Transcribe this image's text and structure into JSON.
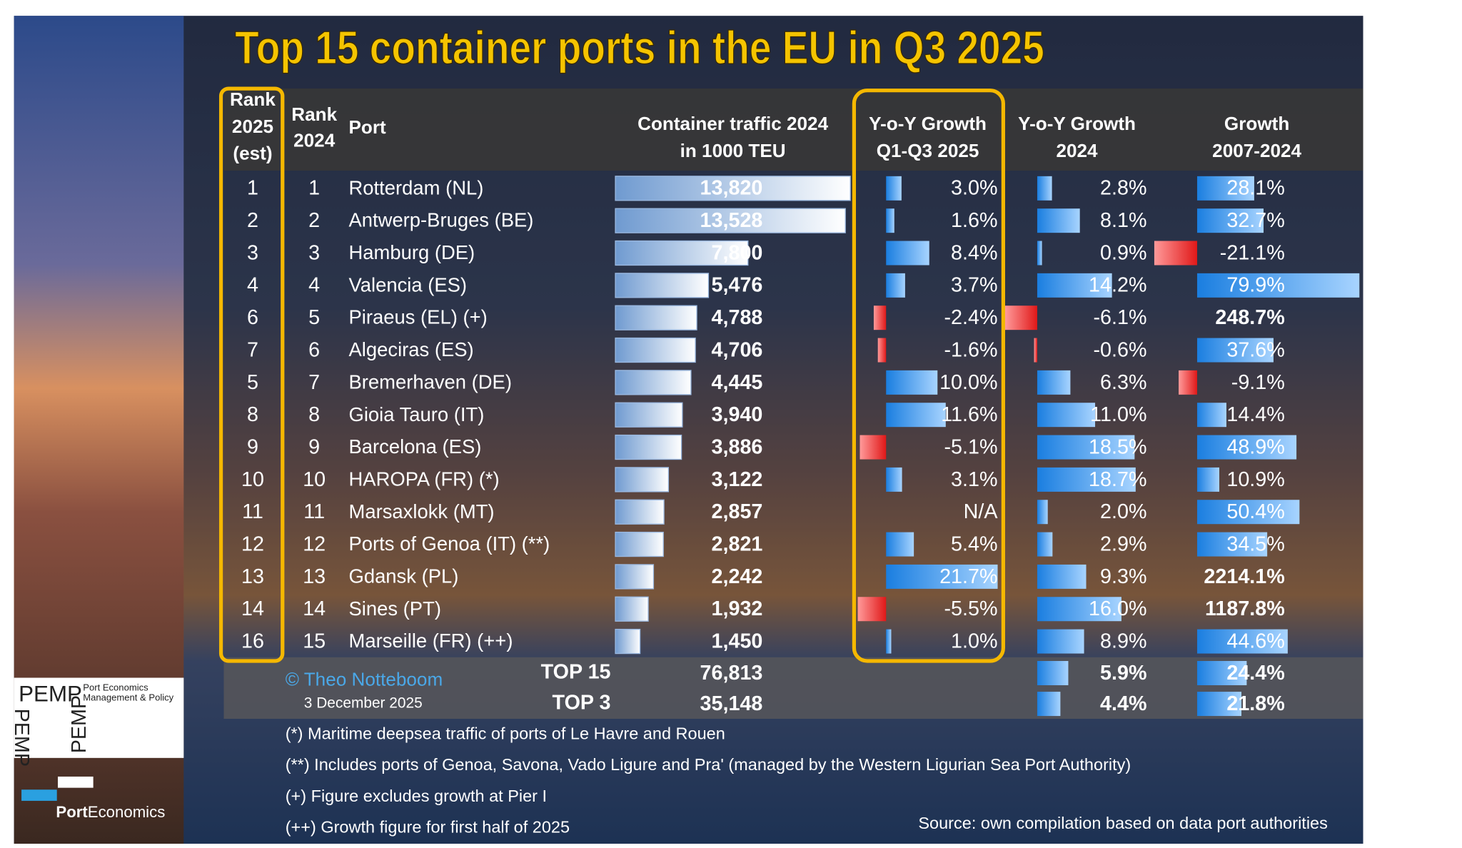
{
  "title": "Top 15 container ports in the EU in Q3 2025",
  "header": {
    "rank_2025": [
      "Rank",
      "2025",
      "(est)"
    ],
    "rank_2024": [
      "Rank",
      "2024"
    ],
    "port": "Port",
    "traffic": [
      "Container traffic 2024",
      "in 1000 TEU"
    ],
    "yoy_2025": [
      "Y-o-Y Growth",
      "Q1-Q3 2025"
    ],
    "yoy_2024": [
      "Y-o-Y Growth",
      "2024"
    ],
    "growth_2007_2024": [
      "Growth",
      "2007-2024"
    ]
  },
  "scales": {
    "traffic": [
      0,
      13820
    ],
    "yoy_2025": [
      -5.5,
      21.7
    ],
    "yoy_2024": [
      -6.1,
      18.7
    ],
    "growth_2007_2024": [
      -21.1,
      79.9
    ]
  },
  "table": {
    "rows": [
      {
        "rank_2025": 1,
        "rank_2024": 1,
        "port": "Rotterdam (NL)",
        "traffic": {
          "value": 13820,
          "label": "13,820"
        },
        "yoy_2025": {
          "value": 3.0,
          "label": "3.0%"
        },
        "yoy_2024": {
          "value": 2.8,
          "label": "2.8%"
        },
        "growth_2007_2024": {
          "value": 28.1,
          "label": "28.1%"
        }
      },
      {
        "rank_2025": 2,
        "rank_2024": 2,
        "port": "Antwerp-Bruges (BE)",
        "traffic": {
          "value": 13528,
          "label": "13,528"
        },
        "yoy_2025": {
          "value": 1.6,
          "label": "1.6%"
        },
        "yoy_2024": {
          "value": 8.1,
          "label": "8.1%"
        },
        "growth_2007_2024": {
          "value": 32.7,
          "label": "32.7%"
        }
      },
      {
        "rank_2025": 3,
        "rank_2024": 3,
        "port": "Hamburg (DE)",
        "traffic": {
          "value": 7800,
          "label": "7,800"
        },
        "yoy_2025": {
          "value": 8.4,
          "label": "8.4%"
        },
        "yoy_2024": {
          "value": 0.9,
          "label": "0.9%"
        },
        "growth_2007_2024": {
          "value": -21.1,
          "label": "-21.1%"
        }
      },
      {
        "rank_2025": 4,
        "rank_2024": 4,
        "port": "Valencia (ES)",
        "traffic": {
          "value": 5476,
          "label": "5,476"
        },
        "yoy_2025": {
          "value": 3.7,
          "label": "3.7%"
        },
        "yoy_2024": {
          "value": 14.2,
          "label": "14.2%"
        },
        "growth_2007_2024": {
          "value": 79.9,
          "label": "79.9%"
        }
      },
      {
        "rank_2025": 6,
        "rank_2024": 5,
        "port": "Piraeus (EL) (+)",
        "traffic": {
          "value": 4788,
          "label": "4,788"
        },
        "yoy_2025": {
          "value": -2.4,
          "label": "-2.4%"
        },
        "yoy_2024": {
          "value": -6.1,
          "label": "-6.1%"
        },
        "growth_2007_2024": {
          "value": 248.7,
          "label": "248.7%"
        }
      },
      {
        "rank_2025": 7,
        "rank_2024": 6,
        "port": "Algeciras (ES)",
        "traffic": {
          "value": 4706,
          "label": "4,706"
        },
        "yoy_2025": {
          "value": -1.6,
          "label": "-1.6%"
        },
        "yoy_2024": {
          "value": -0.6,
          "label": "-0.6%"
        },
        "growth_2007_2024": {
          "value": 37.6,
          "label": "37.6%"
        }
      },
      {
        "rank_2025": 5,
        "rank_2024": 7,
        "port": "Bremerhaven (DE)",
        "traffic": {
          "value": 4445,
          "label": "4,445"
        },
        "yoy_2025": {
          "value": 10.0,
          "label": "10.0%"
        },
        "yoy_2024": {
          "value": 6.3,
          "label": "6.3%"
        },
        "growth_2007_2024": {
          "value": -9.1,
          "label": "-9.1%"
        }
      },
      {
        "rank_2025": 8,
        "rank_2024": 8,
        "port": "Gioia Tauro (IT)",
        "traffic": {
          "value": 3940,
          "label": "3,940"
        },
        "yoy_2025": {
          "value": 11.6,
          "label": "11.6%"
        },
        "yoy_2024": {
          "value": 11.0,
          "label": "11.0%"
        },
        "growth_2007_2024": {
          "value": 14.4,
          "label": "14.4%"
        }
      },
      {
        "rank_2025": 9,
        "rank_2024": 9,
        "port": "Barcelona (ES)",
        "traffic": {
          "value": 3886,
          "label": "3,886"
        },
        "yoy_2025": {
          "value": -5.1,
          "label": "-5.1%"
        },
        "yoy_2024": {
          "value": 18.5,
          "label": "18.5%"
        },
        "growth_2007_2024": {
          "value": 48.9,
          "label": "48.9%"
        }
      },
      {
        "rank_2025": 10,
        "rank_2024": 10,
        "port": "HAROPA (FR) (*)",
        "traffic": {
          "value": 3122,
          "label": "3,122"
        },
        "yoy_2025": {
          "value": 3.1,
          "label": "3.1%"
        },
        "yoy_2024": {
          "value": 18.7,
          "label": "18.7%"
        },
        "growth_2007_2024": {
          "value": 10.9,
          "label": "10.9%"
        }
      },
      {
        "rank_2025": 11,
        "rank_2024": 11,
        "port": "Marsaxlokk (MT)",
        "traffic": {
          "value": 2857,
          "label": "2,857"
        },
        "yoy_2025": {
          "value": null,
          "label": "N/A"
        },
        "yoy_2024": {
          "value": 2.0,
          "label": "2.0%"
        },
        "growth_2007_2024": {
          "value": 50.4,
          "label": "50.4%"
        }
      },
      {
        "rank_2025": 12,
        "rank_2024": 12,
        "port": "Ports of Genoa (IT) (**)",
        "traffic": {
          "value": 2821,
          "label": "2,821"
        },
        "yoy_2025": {
          "value": 5.4,
          "label": "5.4%"
        },
        "yoy_2024": {
          "value": 2.9,
          "label": "2.9%"
        },
        "growth_2007_2024": {
          "value": 34.5,
          "label": "34.5%"
        }
      },
      {
        "rank_2025": 13,
        "rank_2024": 13,
        "port": "Gdansk (PL)",
        "traffic": {
          "value": 2242,
          "label": "2,242"
        },
        "yoy_2025": {
          "value": 21.7,
          "label": "21.7%"
        },
        "yoy_2024": {
          "value": 9.3,
          "label": "9.3%"
        },
        "growth_2007_2024": {
          "value": 2214.1,
          "label": "2214.1%"
        }
      },
      {
        "rank_2025": 14,
        "rank_2024": 14,
        "port": "Sines (PT)",
        "traffic": {
          "value": 1932,
          "label": "1,932"
        },
        "yoy_2025": {
          "value": -5.5,
          "label": "-5.5%"
        },
        "yoy_2024": {
          "value": 16.0,
          "label": "16.0%"
        },
        "growth_2007_2024": {
          "value": 1187.8,
          "label": "1187.8%"
        }
      },
      {
        "rank_2025": 16,
        "rank_2024": 15,
        "port": "Marseille (FR) (++)",
        "traffic": {
          "value": 1450,
          "label": "1,450"
        },
        "yoy_2025": {
          "value": 1.0,
          "label": "1.0%"
        },
        "yoy_2024": {
          "value": 8.9,
          "label": "8.9%"
        },
        "growth_2007_2024": {
          "value": 44.6,
          "label": "44.6%"
        }
      }
    ],
    "totals": [
      {
        "label": "TOP 15",
        "traffic": {
          "value": 76813,
          "label": "76,813"
        },
        "yoy_2024": {
          "value": 5.9,
          "label": "5.9%"
        },
        "growth_2007_2024": {
          "value": 24.4,
          "label": "24.4%"
        }
      },
      {
        "label": "TOP 3",
        "traffic": {
          "value": 35148,
          "label": "35,148"
        },
        "yoy_2024": {
          "value": 4.4,
          "label": "4.4%"
        },
        "growth_2007_2024": {
          "value": 21.8,
          "label": "21.8%"
        }
      }
    ]
  },
  "credit": "© Theo Notteboom",
  "date": "3 December 2025",
  "footnotes": [
    "(*) Maritime deepsea traffic of ports of Le Havre and Rouen",
    "(**) Includes ports of Genoa, Savona, Vado Ligure and Pra' (managed by the Western Ligurian Sea Port Authority)",
    "(+) Figure excludes growth at Pier I",
    "(++) Growth figure for first half of 2025"
  ],
  "source": "Source: own compilation based on data port authorities",
  "logo": {
    "pemp": "PEMP",
    "tagline": [
      "Port Economics",
      "Management & Policy"
    ],
    "brand": [
      "Port",
      "Economics"
    ]
  }
}
